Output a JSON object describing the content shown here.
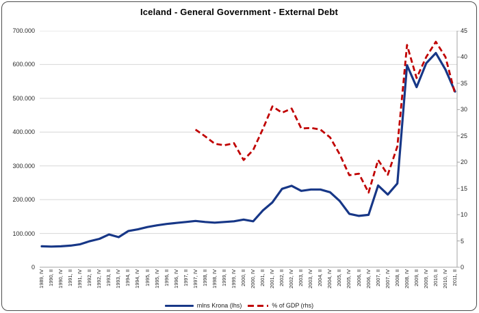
{
  "chart_data": {
    "type": "line",
    "title": "Iceland - General Government - External Debt",
    "categories": [
      "1989, IV",
      "1990, II",
      "1990, IV",
      "1991, II",
      "1991, IV",
      "1992, II",
      "1992, IV",
      "1993, II",
      "1993, IV",
      "1994, II",
      "1994, IV",
      "1995, II",
      "1995, IV",
      "1996, II",
      "1996, IV",
      "1997, II",
      "1997, IV",
      "1998, II",
      "1998, IV",
      "1999, II",
      "1999, IV",
      "2000, II",
      "2000, IV",
      "2001, II",
      "2001, IV",
      "2002, II",
      "2002, IV",
      "2003, II",
      "2003, IV",
      "2004, II",
      "2004, IV",
      "2005, II",
      "2005, IV",
      "2006, II",
      "2006, IV",
      "2007, II",
      "2007, IV",
      "2008, II",
      "2008, IV",
      "2009, II",
      "2009, IV",
      "2010, II",
      "2010, IV",
      "2011, II"
    ],
    "series": [
      {
        "name": "mlns Krona (lhs)",
        "axis": "left",
        "color": "#173787",
        "style": "solid",
        "values": [
          62000,
          61000,
          62000,
          64000,
          68000,
          77000,
          84000,
          97000,
          89000,
          107000,
          112000,
          119000,
          124000,
          128000,
          131000,
          134000,
          137000,
          134000,
          132000,
          134000,
          136000,
          141000,
          136000,
          168000,
          192000,
          232000,
          241000,
          226000,
          230000,
          230000,
          222000,
          196000,
          158000,
          152000,
          155000,
          242000,
          215000,
          248000,
          598000,
          533000,
          604000,
          634000,
          585000,
          520000
        ]
      },
      {
        "name": "% of GDP (rhs)",
        "axis": "right",
        "color": "#C00000",
        "style": "dashed",
        "values": [
          null,
          null,
          null,
          null,
          null,
          null,
          null,
          null,
          null,
          null,
          null,
          null,
          null,
          null,
          null,
          null,
          26.2,
          24.9,
          23.5,
          23.2,
          23.6,
          20.4,
          22.3,
          26.3,
          30.6,
          29.4,
          30.2,
          26.4,
          26.5,
          26.2,
          24.7,
          21.5,
          17.5,
          17.8,
          14.2,
          20.4,
          17.6,
          23.0,
          42.3,
          36.0,
          40.0,
          42.9,
          40.0,
          33.0
        ]
      }
    ],
    "left_axis": {
      "min": 0,
      "max": 700000,
      "tick_labels": [
        "700.000",
        "600.000",
        "500.000",
        "400.000",
        "300.000",
        "200.000",
        "100.000",
        "0"
      ],
      "tick_values": [
        700000,
        600000,
        500000,
        400000,
        300000,
        200000,
        100000,
        0
      ]
    },
    "right_axis": {
      "min": 0,
      "max": 45,
      "step": 5,
      "tick_labels": [
        "45",
        "40",
        "35",
        "30",
        "25",
        "20",
        "15",
        "10",
        "5",
        "0"
      ],
      "tick_values": [
        45,
        40,
        35,
        30,
        25,
        20,
        15,
        10,
        5,
        0
      ]
    },
    "grid": true,
    "legend_position": "bottom"
  },
  "colors": {
    "gridline": "#d6d6d6",
    "axis_line": "#a3a3a3",
    "border": "#4a4a4a",
    "background": "#ffffff",
    "tick_text": "#262626"
  }
}
